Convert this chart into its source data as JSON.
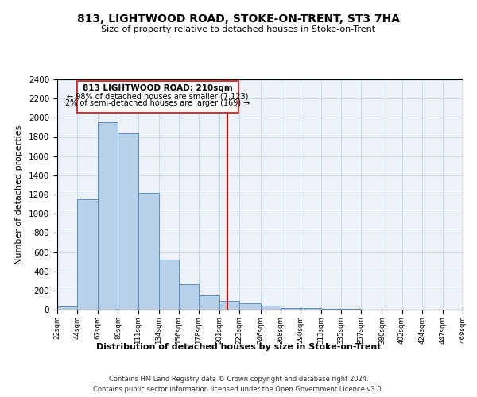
{
  "title": "813, LIGHTWOOD ROAD, STOKE-ON-TRENT, ST3 7HA",
  "subtitle": "Size of property relative to detached houses in Stoke-on-Trent",
  "xlabel": "Distribution of detached houses by size in Stoke-on-Trent",
  "ylabel": "Number of detached properties",
  "bins": [
    22,
    44,
    67,
    89,
    111,
    134,
    156,
    178,
    201,
    223,
    246,
    268,
    290,
    313,
    335,
    357,
    380,
    402,
    424,
    447,
    469
  ],
  "counts": [
    30,
    1150,
    1950,
    1840,
    1220,
    520,
    265,
    150,
    90,
    65,
    45,
    20,
    15,
    10,
    5,
    3,
    2,
    1,
    1,
    1
  ],
  "bar_color": "#b8d0e8",
  "bar_edge_color": "#5590c8",
  "reference_line_x": 210,
  "reference_line_color": "#cc0000",
  "ylim": [
    0,
    2400
  ],
  "yticks": [
    0,
    200,
    400,
    600,
    800,
    1000,
    1200,
    1400,
    1600,
    1800,
    2000,
    2200,
    2400
  ],
  "tick_labels": [
    "22sqm",
    "44sqm",
    "67sqm",
    "89sqm",
    "111sqm",
    "134sqm",
    "156sqm",
    "178sqm",
    "201sqm",
    "223sqm",
    "246sqm",
    "268sqm",
    "290sqm",
    "313sqm",
    "335sqm",
    "357sqm",
    "380sqm",
    "402sqm",
    "424sqm",
    "447sqm",
    "469sqm"
  ],
  "annotation_title": "813 LIGHTWOOD ROAD: 210sqm",
  "annotation_line1": "← 98% of detached houses are smaller (7,123)",
  "annotation_line2": "2% of semi-detached houses are larger (169) →",
  "footnote1": "Contains HM Land Registry data © Crown copyright and database right 2024.",
  "footnote2": "Contains public sector information licensed under the Open Government Licence v3.0.",
  "background_color": "#edf2f8",
  "grid_color": "#c5d5e8"
}
